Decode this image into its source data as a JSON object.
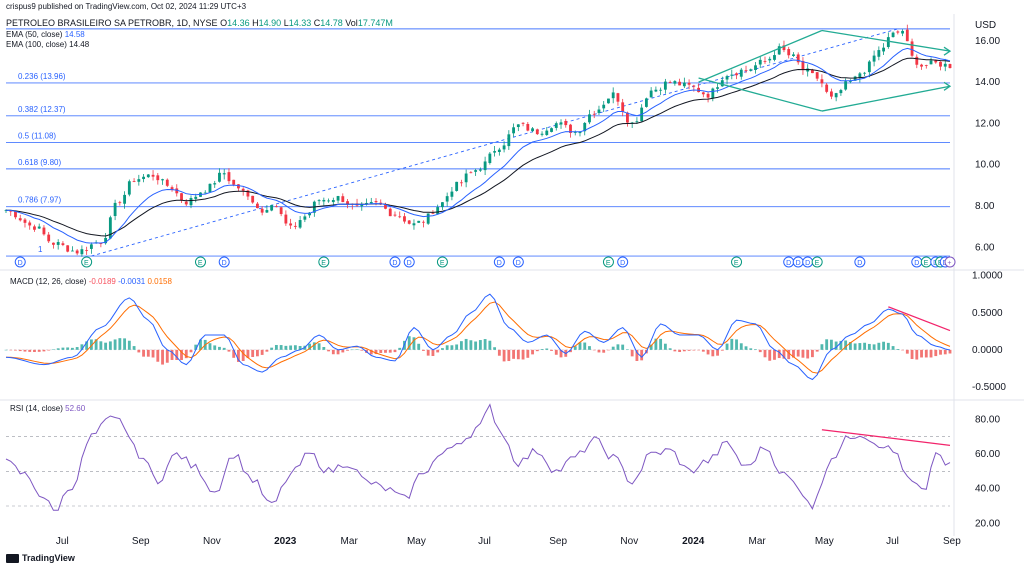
{
  "publisher": "crispus9 published on TradingView.com, Oct 02, 2024 11:29 UTC+3",
  "header": {
    "symbol": "PETROLEO BRASILEIRO SA PETROBR, 1D, NYSE",
    "o_label": "O",
    "o": "14.36",
    "h_label": "H",
    "h": "14.90",
    "l_label": "L",
    "l": "14.33",
    "c_label": "C",
    "c": "14.78",
    "vol_label": "Vol",
    "vol": "17.747M",
    "ema50_label": "EMA (50, close)",
    "ema50": "14.58",
    "ema100_label": "EMA (100, close)",
    "ema100": "14.48",
    "macd_label": "MACD (12, 26, close)",
    "macd_hist": "-0.0189",
    "macd_line": "-0.0031",
    "macd_signal": "0.0158",
    "rsi_label": "RSI (14, close)",
    "rsi": "52.60"
  },
  "fib_labels": [
    {
      "text": "0.236 (13.96)"
    },
    {
      "text": "0.382 (12.37)"
    },
    {
      "text": "0.5 (11.08)"
    },
    {
      "text": "0.618 (9.80)"
    },
    {
      "text": "0.786 (7.97)"
    },
    {
      "text": "1"
    }
  ],
  "brand": "TradingView",
  "colors": {
    "candle_up": "#089981",
    "candle_down": "#f23645",
    "ema50": "#2962ff",
    "ema100": "#131722",
    "fib": "#2962ff",
    "channel": "#22ab94",
    "divergence": "#f2246b",
    "macd": "#2962ff",
    "signal": "#ff6d00",
    "rsi": "#7e57c2"
  },
  "chart_data": [
    {
      "type": "candlestick",
      "title": "PETROLEO BRASILEIRO SA PETROBR, 1D, NYSE",
      "currency": "USD",
      "x_ticks": [
        "Jul",
        "Sep",
        "Nov",
        "2023",
        "Mar",
        "May",
        "Jul",
        "Sep",
        "Nov",
        "2024",
        "Mar",
        "May",
        "Jul",
        "Sep"
      ],
      "y_ticks": [
        6.0,
        8.0,
        10.0,
        12.0,
        14.0,
        16.0
      ],
      "y_tick_labels": [
        "6.00",
        "8.00",
        "10.00",
        "12.00",
        "14.00",
        "16.00"
      ],
      "ylim": [
        5.0,
        17.3
      ],
      "x_count": 200,
      "close_anchors": [
        [
          0,
          7.8
        ],
        [
          6,
          7.0
        ],
        [
          10,
          6.2
        ],
        [
          15,
          5.8
        ],
        [
          20,
          6.3
        ],
        [
          24,
          8.3
        ],
        [
          27,
          9.3
        ],
        [
          31,
          9.5
        ],
        [
          34,
          9.0
        ],
        [
          38,
          8.2
        ],
        [
          42,
          8.8
        ],
        [
          46,
          9.6
        ],
        [
          48,
          9.0
        ],
        [
          52,
          8.3
        ],
        [
          54,
          7.7
        ],
        [
          56,
          8.2
        ],
        [
          60,
          6.9
        ],
        [
          63,
          7.5
        ],
        [
          66,
          8.3
        ],
        [
          70,
          8.4
        ],
        [
          74,
          7.9
        ],
        [
          78,
          8.1
        ],
        [
          82,
          7.6
        ],
        [
          86,
          7.1
        ],
        [
          88,
          7.3
        ],
        [
          91,
          8.0
        ],
        [
          95,
          9.0
        ],
        [
          98,
          9.6
        ],
        [
          100,
          9.9
        ],
        [
          104,
          10.9
        ],
        [
          108,
          11.9
        ],
        [
          112,
          11.6
        ],
        [
          116,
          12.0
        ],
        [
          120,
          11.6
        ],
        [
          124,
          12.6
        ],
        [
          128,
          13.4
        ],
        [
          132,
          12.0
        ],
        [
          136,
          13.6
        ],
        [
          140,
          14.0
        ],
        [
          144,
          13.8
        ],
        [
          148,
          13.4
        ],
        [
          152,
          14.4
        ],
        [
          156,
          14.6
        ],
        [
          160,
          15.0
        ],
        [
          163,
          15.6
        ],
        [
          166,
          15.2
        ],
        [
          168,
          14.6
        ],
        [
          171,
          14.2
        ],
        [
          174,
          13.2
        ],
        [
          178,
          14.0
        ],
        [
          181,
          14.6
        ],
        [
          184,
          15.5
        ],
        [
          187,
          16.3
        ],
        [
          189,
          16.5
        ],
        [
          191,
          15.2
        ],
        [
          193,
          14.8
        ],
        [
          196,
          14.9
        ],
        [
          199,
          14.8
        ]
      ],
      "series": [
        {
          "name": "EMA (50, close)",
          "last": 14.58
        },
        {
          "name": "EMA (100, close)",
          "last": 14.48
        }
      ],
      "fibonacci": [
        {
          "ratio": "0",
          "price": 16.58
        },
        {
          "ratio": "0.236",
          "price": 13.96
        },
        {
          "ratio": "0.382",
          "price": 12.37
        },
        {
          "ratio": "0.5",
          "price": 11.08
        },
        {
          "ratio": "0.618",
          "price": 9.8
        },
        {
          "ratio": "0.786",
          "price": 7.97
        },
        {
          "ratio": "1",
          "price": 5.58
        }
      ],
      "events": [
        "D",
        "E",
        "E",
        "D",
        "E",
        "D",
        "D",
        "E",
        "D",
        "D",
        "E",
        "D",
        "E",
        "D",
        "D",
        "D",
        "E",
        "D",
        "D",
        "E",
        "D",
        "E",
        "D",
        "+"
      ]
    },
    {
      "type": "line",
      "title": "MACD (12, 26, close)",
      "y_ticks": [
        -0.5,
        0,
        0.5,
        1.0
      ],
      "y_tick_labels": [
        "-0.5000",
        "0.0000",
        "0.5000",
        "1.0000"
      ],
      "ylim": [
        -0.65,
        1.05
      ],
      "series": [
        {
          "name": "MACD",
          "last": -0.0031
        },
        {
          "name": "Signal",
          "last": 0.0158
        },
        {
          "name": "Histogram",
          "last": -0.0189
        }
      ],
      "macd_anchors": [
        [
          0,
          -0.1
        ],
        [
          8,
          -0.2
        ],
        [
          14,
          -0.1
        ],
        [
          20,
          0.3
        ],
        [
          26,
          0.7
        ],
        [
          30,
          0.4
        ],
        [
          34,
          0.0
        ],
        [
          38,
          -0.2
        ],
        [
          42,
          0.2
        ],
        [
          46,
          0.2
        ],
        [
          50,
          -0.2
        ],
        [
          54,
          -0.3
        ],
        [
          58,
          -0.1
        ],
        [
          62,
          0.0
        ],
        [
          66,
          0.2
        ],
        [
          70,
          0.0
        ],
        [
          74,
          0.05
        ],
        [
          78,
          -0.1
        ],
        [
          82,
          -0.15
        ],
        [
          86,
          0.3
        ],
        [
          90,
          0.0
        ],
        [
          94,
          0.2
        ],
        [
          98,
          0.5
        ],
        [
          102,
          0.75
        ],
        [
          106,
          0.3
        ],
        [
          110,
          0.1
        ],
        [
          114,
          0.2
        ],
        [
          118,
          -0.05
        ],
        [
          122,
          0.25
        ],
        [
          126,
          0.1
        ],
        [
          130,
          0.3
        ],
        [
          134,
          -0.1
        ],
        [
          138,
          0.35
        ],
        [
          142,
          0.2
        ],
        [
          146,
          0.2
        ],
        [
          150,
          0.0
        ],
        [
          154,
          0.4
        ],
        [
          158,
          0.35
        ],
        [
          162,
          0.0
        ],
        [
          166,
          -0.2
        ],
        [
          170,
          -0.4
        ],
        [
          174,
          0.0
        ],
        [
          178,
          0.2
        ],
        [
          182,
          0.35
        ],
        [
          186,
          0.55
        ],
        [
          189,
          0.48
        ],
        [
          192,
          0.2
        ],
        [
          196,
          0.05
        ],
        [
          199,
          -0.003
        ]
      ]
    },
    {
      "type": "line",
      "title": "RSI (14, close)",
      "y_ticks": [
        20,
        40,
        60,
        80
      ],
      "y_tick_labels": [
        "20.00",
        "40.00",
        "60.00",
        "80.00"
      ],
      "ylim": [
        15,
        90
      ],
      "bands": [
        30,
        50,
        70
      ],
      "series": [
        {
          "name": "RSI (14, close)",
          "last": 52.6
        }
      ],
      "rsi_anchors": [
        [
          0,
          55
        ],
        [
          4,
          48
        ],
        [
          8,
          35
        ],
        [
          10,
          27
        ],
        [
          14,
          42
        ],
        [
          18,
          70
        ],
        [
          22,
          80
        ],
        [
          24,
          79
        ],
        [
          28,
          60
        ],
        [
          32,
          45
        ],
        [
          36,
          60
        ],
        [
          40,
          52
        ],
        [
          44,
          38
        ],
        [
          48,
          60
        ],
        [
          52,
          45
        ],
        [
          56,
          30
        ],
        [
          60,
          48
        ],
        [
          64,
          60
        ],
        [
          68,
          50
        ],
        [
          72,
          55
        ],
        [
          76,
          44
        ],
        [
          80,
          40
        ],
        [
          84,
          34
        ],
        [
          88,
          50
        ],
        [
          92,
          60
        ],
        [
          96,
          68
        ],
        [
          100,
          76
        ],
        [
          102,
          87
        ],
        [
          104,
          74
        ],
        [
          108,
          55
        ],
        [
          112,
          62
        ],
        [
          116,
          50
        ],
        [
          120,
          58
        ],
        [
          124,
          68
        ],
        [
          128,
          58
        ],
        [
          132,
          44
        ],
        [
          136,
          60
        ],
        [
          140,
          62
        ],
        [
          144,
          50
        ],
        [
          148,
          56
        ],
        [
          152,
          66
        ],
        [
          156,
          52
        ],
        [
          160,
          64
        ],
        [
          164,
          48
        ],
        [
          168,
          38
        ],
        [
          170,
          30
        ],
        [
          174,
          58
        ],
        [
          178,
          70
        ],
        [
          180,
          72
        ],
        [
          184,
          66
        ],
        [
          188,
          60
        ],
        [
          190,
          45
        ],
        [
          194,
          38
        ],
        [
          196,
          62
        ],
        [
          198,
          55
        ],
        [
          199,
          52.6
        ]
      ]
    }
  ]
}
